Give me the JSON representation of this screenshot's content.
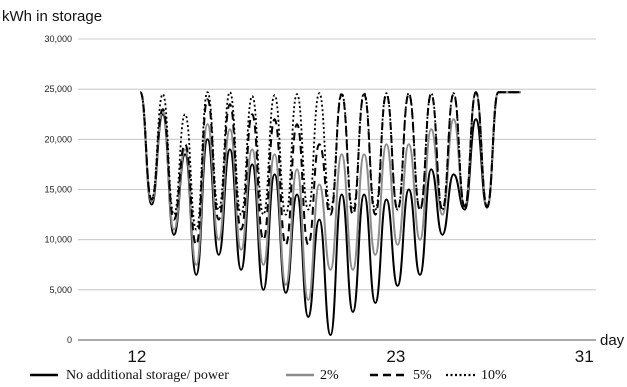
{
  "chart_data": {
    "type": "line",
    "ylabel": "kWh in storage",
    "xlabel": "day",
    "ylim": [
      0,
      30000
    ],
    "yticks": [
      0,
      5000,
      10000,
      15000,
      20000,
      25000,
      30000
    ],
    "ytick_labels": [
      "0",
      "5,000",
      "10,000",
      "15,000",
      "20,000",
      "25,000",
      "30,000"
    ],
    "xlim": [
      9.5,
      31.5
    ],
    "xticks": [
      12,
      23,
      31
    ],
    "xtick_labels": [
      "12",
      "23",
      "31"
    ],
    "grid": true,
    "legend_position": "bottom",
    "x_start": 12.15,
    "cycle_days": 0.95,
    "series": [
      {
        "name": "No additional storage/ power",
        "color": "#000000",
        "stroke_width": 2,
        "dash": "",
        "start": 24700,
        "peaks": [
          24700,
          22500,
          18500,
          20000,
          19000,
          17500,
          16500,
          14500,
          12000,
          14500,
          14500,
          14000,
          15000,
          17000,
          16500,
          22000,
          24700,
          24700,
          24700
        ],
        "troughs": [
          13500,
          10500,
          6500,
          8500,
          7000,
          5000,
          4700,
          2300,
          500,
          2800,
          3700,
          5400,
          6500,
          10500,
          13000,
          13200
        ]
      },
      {
        "name": "2%",
        "color": "#8c8c8c",
        "stroke_width": 2,
        "dash": "",
        "start": 24700,
        "peaks": [
          24700,
          22800,
          19000,
          21500,
          21000,
          19000,
          18500,
          17000,
          15500,
          18500,
          18500,
          19500,
          19500,
          21000,
          22000,
          24700,
          24700,
          24700,
          24700
        ],
        "troughs": [
          13800,
          11000,
          7500,
          10000,
          9000,
          7500,
          5500,
          4000,
          7000,
          7000,
          8500,
          9500,
          10000,
          12500,
          13300,
          13300
        ]
      },
      {
        "name": "5%",
        "color": "#000000",
        "stroke_width": 2,
        "dash": "8,5",
        "start": 24700,
        "peaks": [
          24700,
          23000,
          19500,
          24000,
          23500,
          22500,
          22000,
          21500,
          19500,
          24500,
          24500,
          24500,
          24500,
          24500,
          24500,
          24700,
          24700,
          24700,
          24700
        ],
        "troughs": [
          14000,
          12000,
          9500,
          12000,
          11000,
          10000,
          9500,
          9500,
          12500,
          12500,
          12500,
          13000,
          13000,
          13000,
          13300,
          13300
        ]
      },
      {
        "name": "10%",
        "color": "#000000",
        "stroke_width": 1.8,
        "dash": "2,2.5",
        "start": 24700,
        "peaks": [
          24700,
          24500,
          22500,
          24700,
          24700,
          24300,
          24400,
          24500,
          24600,
          24600,
          24600,
          24600,
          24600,
          24600,
          24600,
          24700,
          24700,
          24700,
          24700
        ],
        "troughs": [
          14000,
          12500,
          11000,
          13000,
          12500,
          12500,
          12500,
          13000,
          13000,
          13000,
          13000,
          13000,
          13000,
          13000,
          13300,
          13300
        ]
      }
    ]
  }
}
